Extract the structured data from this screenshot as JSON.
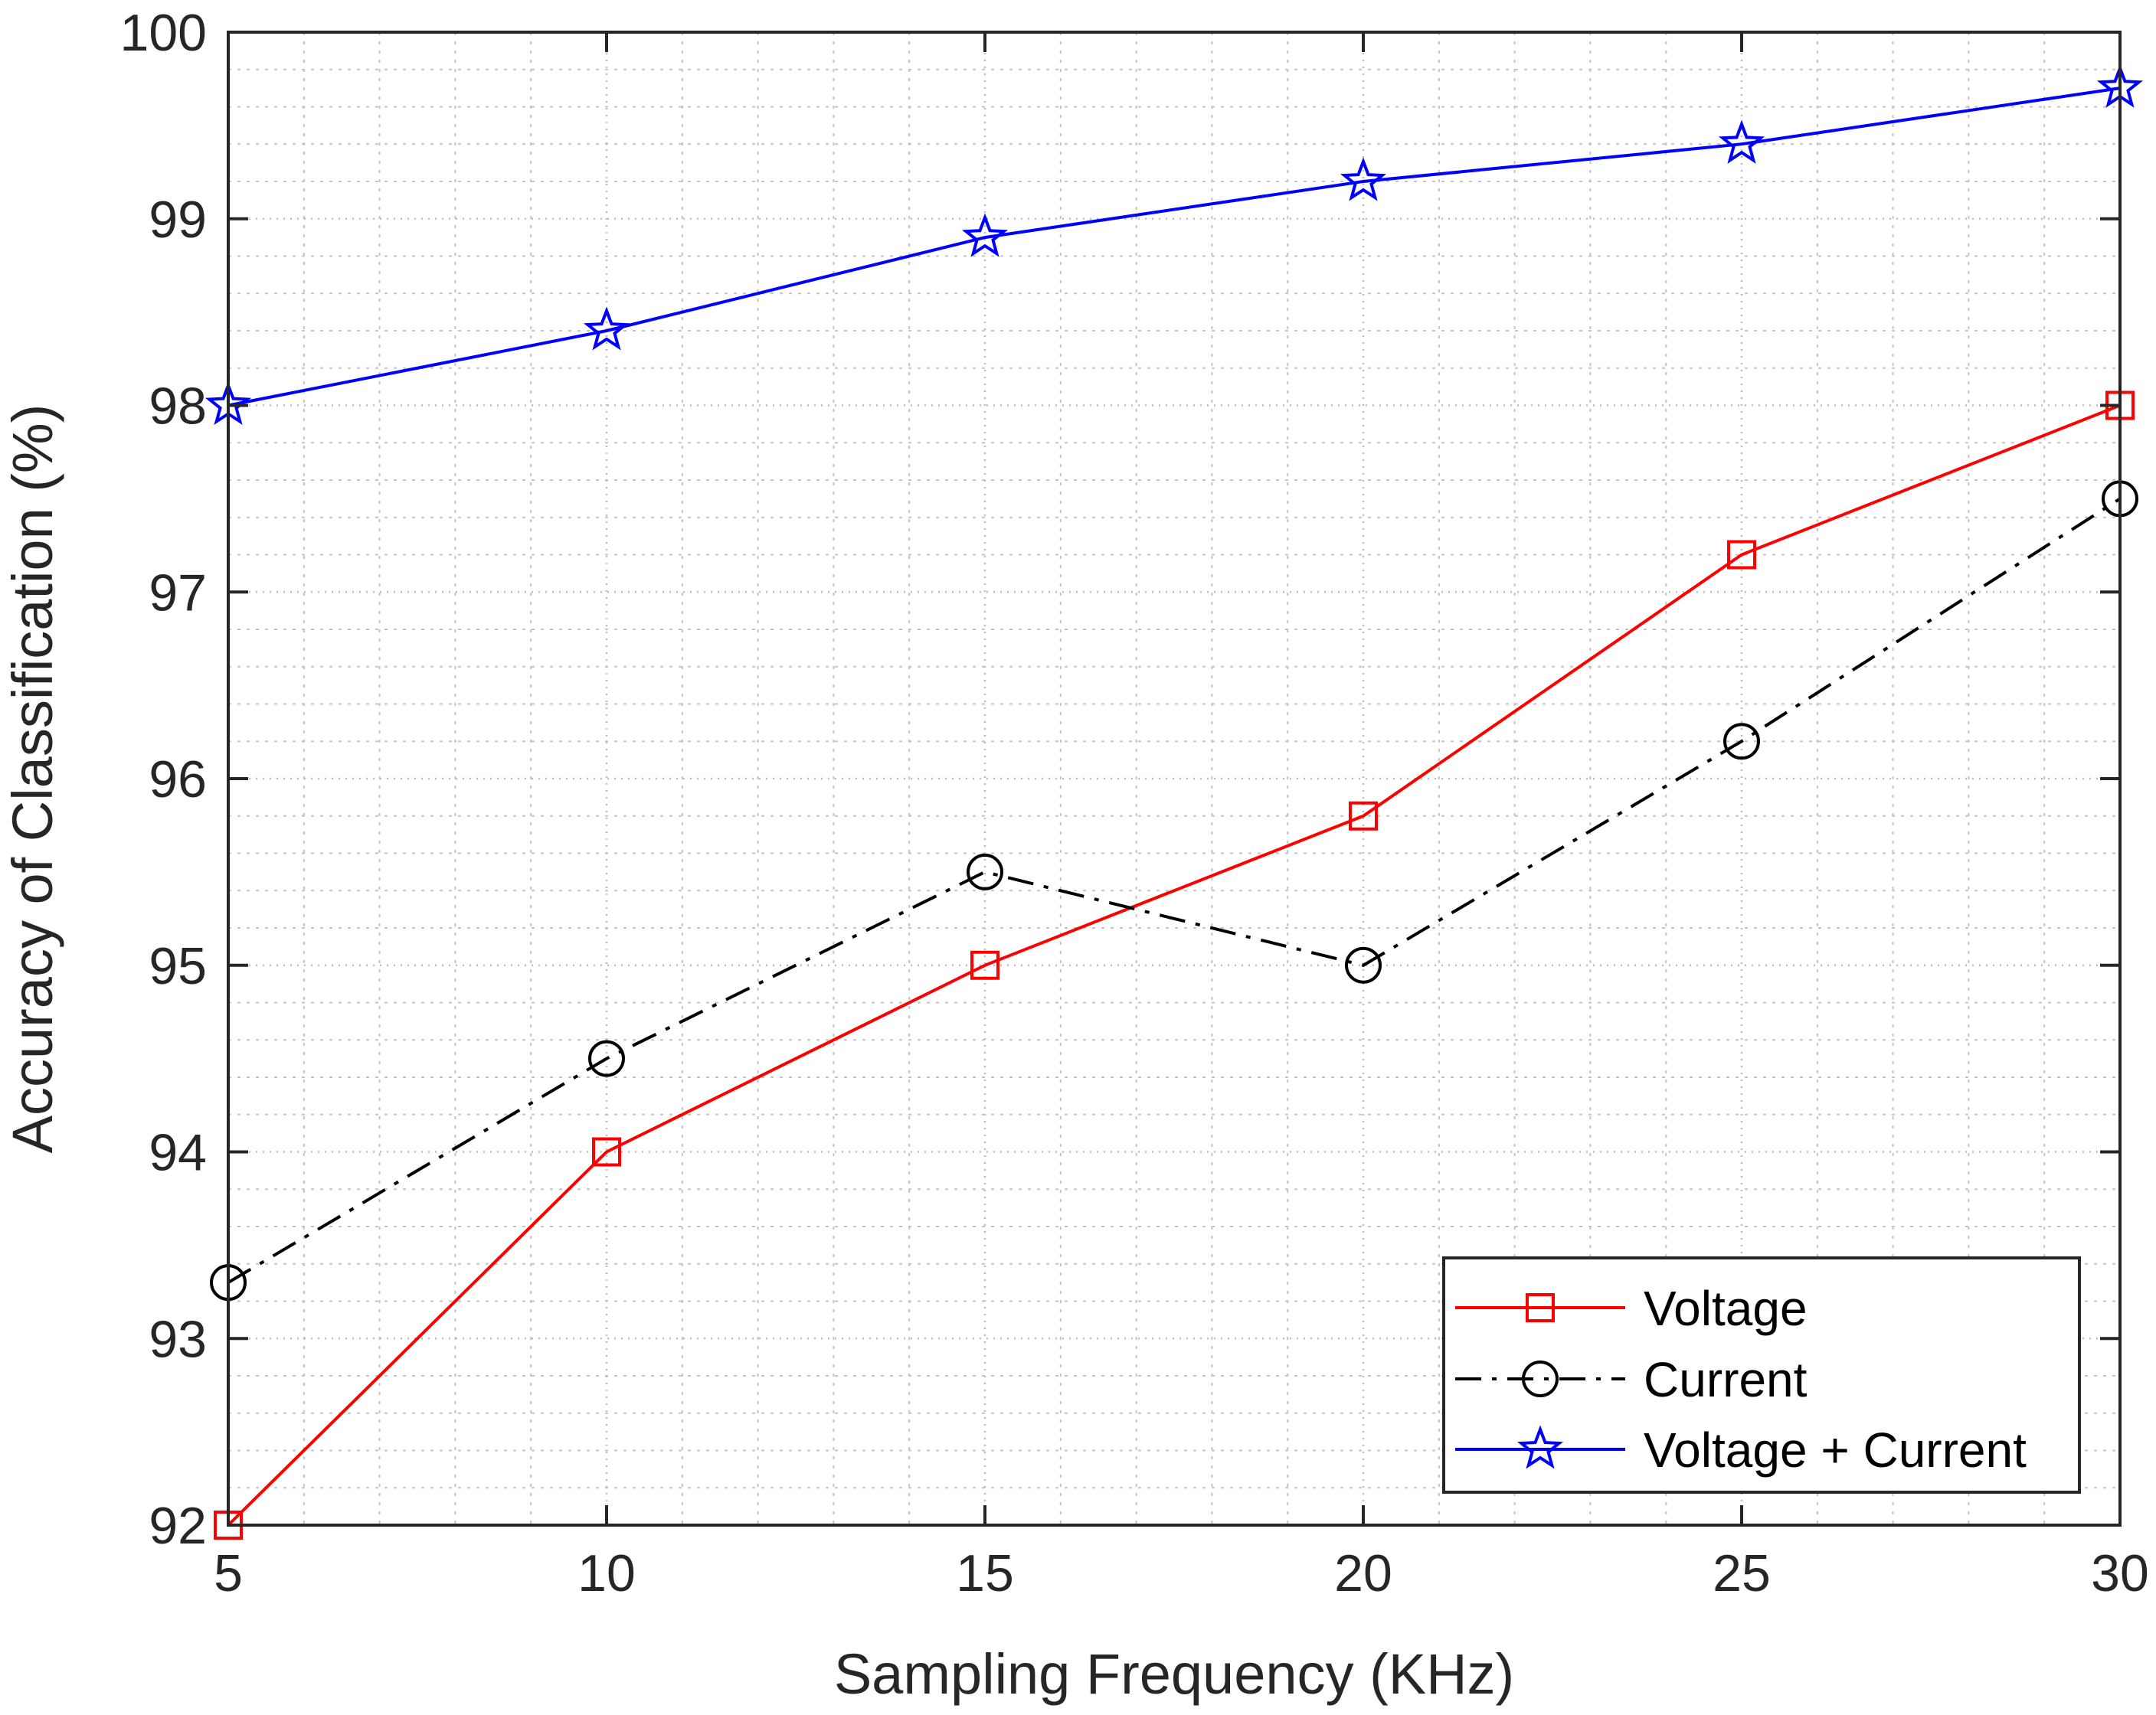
{
  "chart_data": {
    "type": "line",
    "title": "",
    "xlabel": "Sampling Frequency (KHz)",
    "ylabel": "Accuracy of Classification (%)",
    "x": [
      5,
      10,
      15,
      20,
      25,
      30
    ],
    "xlim": [
      5,
      30
    ],
    "ylim": [
      92,
      100
    ],
    "xticks": [
      "5",
      "10",
      "15",
      "20",
      "25",
      "30"
    ],
    "yticks": [
      "92",
      "93",
      "94",
      "95",
      "96",
      "97",
      "98",
      "99",
      "100"
    ],
    "grid": true,
    "minor_grid": true,
    "legend_position": "bottom-right",
    "series": [
      {
        "name": "Voltage",
        "values": [
          92.0,
          94.0,
          95.0,
          95.8,
          97.2,
          98.0
        ],
        "color": "#ff0000",
        "marker": "square",
        "dash": "solid"
      },
      {
        "name": "Current",
        "values": [
          93.3,
          94.5,
          95.5,
          95.0,
          96.2,
          97.5
        ],
        "color": "#000000",
        "marker": "circle",
        "dash": "dashdot"
      },
      {
        "name": "Voltage + Current",
        "values": [
          98.0,
          98.4,
          98.9,
          99.2,
          99.4,
          99.7
        ],
        "color": "#0000ff",
        "marker": "star",
        "dash": "solid"
      }
    ]
  }
}
